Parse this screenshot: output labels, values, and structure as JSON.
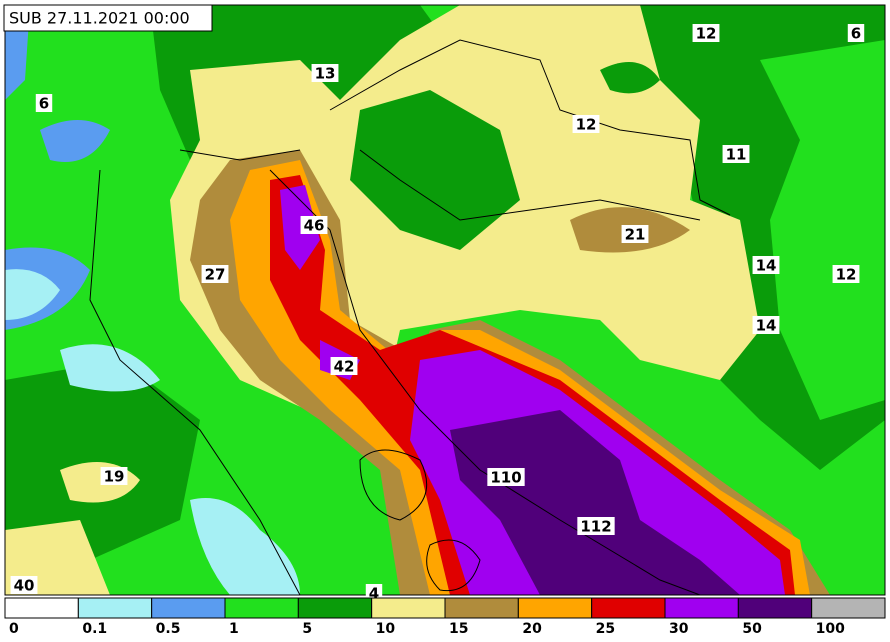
{
  "header": {
    "title": "SUB 27.11.2021 00:00"
  },
  "map": {
    "labels": [
      6,
      13,
      12,
      6,
      12,
      11,
      46,
      21,
      27,
      14,
      12,
      14,
      42,
      19,
      110,
      112,
      40,
      4
    ]
  },
  "legend": {
    "ticks": [
      0,
      0.1,
      0.5,
      1,
      5,
      10,
      15,
      20,
      25,
      30,
      50,
      100
    ],
    "colors": [
      "#ffffff",
      "#a6f0f4",
      "#5a9cf0",
      "#22e01e",
      "#0a9c0a",
      "#f4ec8c",
      "#b08c3c",
      "#ffa500",
      "#e00000",
      "#a000f0",
      "#50007a",
      "#b4b4b4"
    ]
  }
}
